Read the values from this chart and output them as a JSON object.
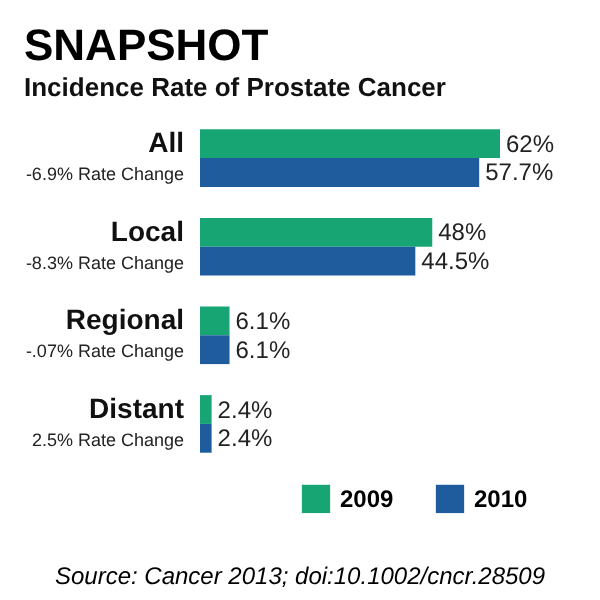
{
  "chart_data": {
    "type": "bar",
    "orientation": "horizontal",
    "title": "SNAPSHOT",
    "subtitle": "Incidence Rate of Prostate Cancer",
    "categories": [
      "All",
      "Local",
      "Regional",
      "Distant"
    ],
    "series": [
      {
        "name": "2009",
        "color": "#17a673",
        "values": [
          62,
          48,
          6.1,
          2.4
        ],
        "value_labels": [
          "62%",
          "48%",
          "6.1%",
          "2.4%"
        ]
      },
      {
        "name": "2010",
        "color": "#1f5c9e",
        "values": [
          57.7,
          44.5,
          6.1,
          2.4
        ],
        "value_labels": [
          "57.7%",
          "44.5%",
          "6.1%",
          "2.4%"
        ]
      }
    ],
    "annotations": [
      "-6.9% Rate Change",
      "-8.3% Rate Change",
      "-.07% Rate Change",
      "2.5% Rate Change",
      "Source: Cancer 2013; doi:10.1002/cncr.28509"
    ],
    "legend": "bottom right"
  }
}
